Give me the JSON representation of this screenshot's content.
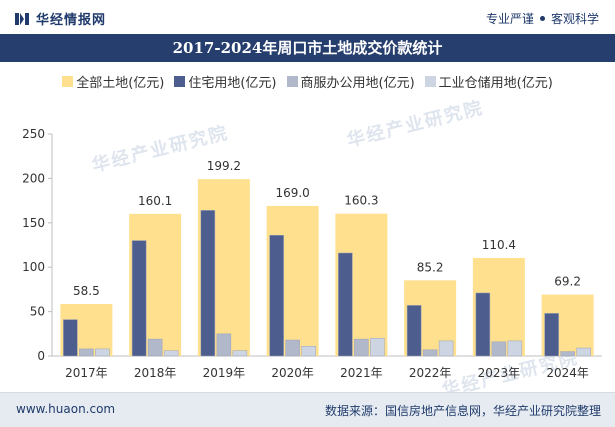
{
  "header": {
    "brand_name": "华经情报网",
    "slogan_left": "专业严谨",
    "slogan_right": "客观科学"
  },
  "watermark_text": "华经产业研究院",
  "footer": {
    "url": "www.huaon.com",
    "source": "数据来源：国信房地产信息网，华经产业研究院整理"
  },
  "colors": {
    "total": "#ffe08f",
    "residential": "#4d5e8e",
    "commercial": "#b0b8ca",
    "industrial": "#cdd5e3",
    "title_bg": "#253e6d"
  },
  "chart_data": {
    "type": "bar",
    "title": "2017-2024年周口市土地成交价款统计",
    "categories": [
      "2017年",
      "2018年",
      "2019年",
      "2020年",
      "2021年",
      "2022年",
      "2023年",
      "2024年"
    ],
    "series": [
      {
        "name": "全部土地(亿元)",
        "values": [
          58.5,
          160.1,
          199.2,
          169.0,
          160.3,
          85.2,
          110.4,
          69.2
        ]
      },
      {
        "name": "住宅用地(亿元)",
        "values": [
          41,
          130,
          164,
          136,
          116,
          57,
          71,
          48
        ]
      },
      {
        "name": "商服办公用地(亿元)",
        "values": [
          8,
          19,
          25,
          18,
          19,
          7,
          16,
          5
        ]
      },
      {
        "name": "工业仓储用地(亿元)",
        "values": [
          8,
          6,
          6,
          11,
          20,
          17,
          17,
          9
        ]
      }
    ],
    "data_labels": [
      "58.5",
      "160.1",
      "199.2",
      "169.0",
      "160.3",
      "85.2",
      "110.4",
      "69.2"
    ],
    "y_ticks": [
      "0",
      "50",
      "100",
      "150",
      "200",
      "250"
    ],
    "ylim": [
      0,
      250
    ],
    "xlabel": "",
    "ylabel": "",
    "grid": false,
    "legend_position": "top"
  }
}
